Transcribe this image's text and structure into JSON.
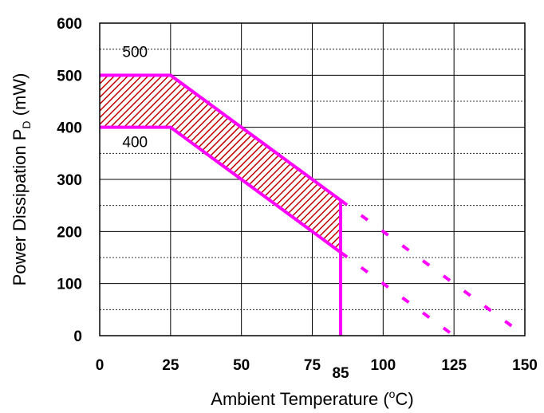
{
  "chart_data": {
    "type": "line",
    "xlabel_main": "Ambient Temperature (",
    "xlabel_sup": "o",
    "xlabel_end": "C)",
    "ylabel_main": "Power Dissipation P",
    "ylabel_sub": "D",
    "ylabel_end": " (mW)",
    "xlim": [
      0,
      150
    ],
    "ylim": [
      0,
      600
    ],
    "x_ticks": [
      0,
      25,
      50,
      75,
      100,
      125,
      150
    ],
    "x_tick_labels": [
      "0",
      "25",
      "50",
      "75",
      "100",
      "125",
      "150"
    ],
    "x_extra_tick": {
      "value": 85,
      "label": "85"
    },
    "y_ticks": [
      0,
      100,
      200,
      300,
      400,
      500,
      600
    ],
    "y_tick_labels": [
      "0",
      "100",
      "200",
      "300",
      "400",
      "500",
      "600"
    ],
    "minor_y_gridlines": [
      50,
      150,
      250,
      350,
      450,
      550
    ],
    "grid": true,
    "series": [
      {
        "name": "500",
        "style": "solid",
        "color": "#ff00ff",
        "points": [
          [
            0,
            500
          ],
          [
            25,
            500
          ],
          [
            85,
            260
          ],
          [
            85,
            0
          ]
        ]
      },
      {
        "name": "400",
        "style": "solid",
        "color": "#ff00ff",
        "points": [
          [
            0,
            400
          ],
          [
            25,
            400
          ],
          [
            85,
            160
          ]
        ]
      },
      {
        "name": "",
        "style": "dashed",
        "color": "#ff00ff",
        "points": [
          [
            85,
            260
          ],
          [
            150,
            0
          ]
        ]
      },
      {
        "name": "",
        "style": "dashed",
        "color": "#ff00ff",
        "points": [
          [
            85,
            160
          ],
          [
            125,
            0
          ]
        ]
      }
    ],
    "hatched_region": {
      "fill_pattern": "diagonal-hatch",
      "color": "#c00000",
      "points": [
        [
          0,
          500
        ],
        [
          25,
          500
        ],
        [
          85,
          260
        ],
        [
          85,
          160
        ],
        [
          25,
          400
        ],
        [
          0,
          400
        ]
      ]
    },
    "annotations": [
      {
        "text": "500",
        "x": 8,
        "y": 535
      },
      {
        "text": "400",
        "x": 8,
        "y": 362
      }
    ]
  }
}
